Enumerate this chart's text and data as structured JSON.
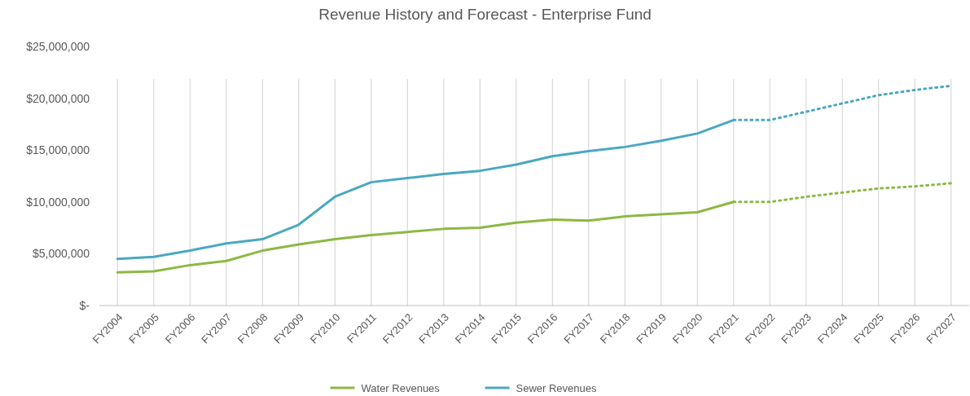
{
  "chart_data": {
    "type": "line",
    "title": "Revenue History and Forecast - Enterprise Fund",
    "categories": [
      "FY2004",
      "FY2005",
      "FY2006",
      "FY2007",
      "FY2008",
      "FY2009",
      "FY2010",
      "FY2011",
      "FY2012",
      "FY2013",
      "FY2014",
      "FY2015",
      "FY2016",
      "FY2017",
      "FY2018",
      "FY2019",
      "FY2020",
      "FY2021",
      "FY2022",
      "FY2023",
      "FY2024",
      "FY2025",
      "FY2026",
      "FY2027"
    ],
    "series": [
      {
        "name": "Water Revenues",
        "color": "#8db843",
        "values": [
          3200000,
          3300000,
          3900000,
          4300000,
          5300000,
          5900000,
          6400000,
          6800000,
          7100000,
          7400000,
          7500000,
          8000000,
          8300000,
          8200000,
          8600000,
          8800000,
          9000000,
          10000000,
          null,
          null,
          null,
          null,
          null,
          null
        ]
      },
      {
        "name": "Sewer Revenues",
        "color": "#4aa8c0",
        "values": [
          4500000,
          4700000,
          5300000,
          6000000,
          6400000,
          7800000,
          10500000,
          11900000,
          12300000,
          12700000,
          13000000,
          13600000,
          14400000,
          14900000,
          15300000,
          15900000,
          16600000,
          17900000,
          null,
          null,
          null,
          null,
          null,
          null
        ]
      },
      {
        "color": "#8db843",
        "line_style": "dotted",
        "values": [
          null,
          null,
          null,
          null,
          null,
          null,
          null,
          null,
          null,
          null,
          null,
          null,
          null,
          null,
          null,
          null,
          null,
          10000000,
          10000000,
          10500000,
          10900000,
          11300000,
          11500000,
          11800000
        ]
      },
      {
        "color": "#4aa8c0",
        "line_style": "dotted",
        "values": [
          null,
          null,
          null,
          null,
          null,
          null,
          null,
          null,
          null,
          null,
          null,
          null,
          null,
          null,
          null,
          null,
          null,
          17900000,
          17900000,
          18700000,
          19500000,
          20300000,
          20800000,
          21200000
        ]
      }
    ],
    "ylim": [
      0,
      25000000
    ],
    "yticks": [
      {
        "value": 0,
        "label": "$-"
      },
      {
        "value": 5000000,
        "label": "$5,000,000"
      },
      {
        "value": 10000000,
        "label": "$10,000,000"
      },
      {
        "value": 15000000,
        "label": "$15,000,000"
      },
      {
        "value": 20000000,
        "label": "$20,000,000"
      },
      {
        "value": 25000000,
        "label": "$25,000,000"
      }
    ],
    "grid": "x",
    "legend": "bottom",
    "line_style": "solid"
  }
}
